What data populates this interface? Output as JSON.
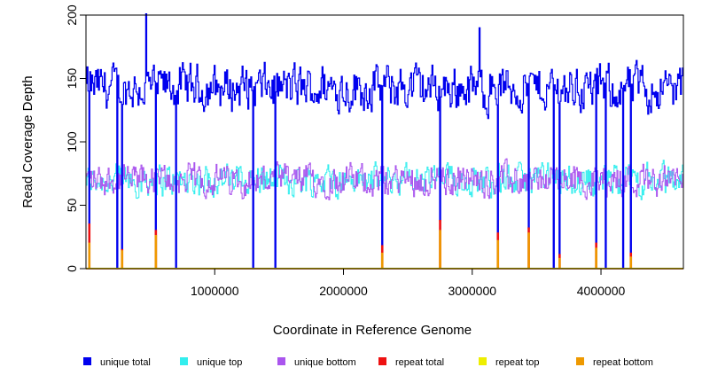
{
  "chart_data": {
    "type": "line",
    "title": "",
    "xlabel": "Coordinate in Reference Genome",
    "ylabel": "Read Coverage Depth",
    "xlim": [
      0,
      4640000
    ],
    "ylim": [
      0,
      200
    ],
    "x_ticks": [
      1000000,
      2000000,
      3000000,
      4000000
    ],
    "x_tick_labels": [
      "1000000",
      "2000000",
      "3000000",
      "4000000"
    ],
    "y_ticks": [
      0,
      50,
      100,
      150,
      200
    ],
    "y_tick_labels": [
      "0",
      "50",
      "100",
      "150",
      "200"
    ],
    "legend_position": "bottom",
    "legend": [
      {
        "name": "unique total",
        "color": "#0000ee"
      },
      {
        "name": "unique top",
        "color": "#33eeee"
      },
      {
        "name": "unique bottom",
        "color": "#aa55ee"
      },
      {
        "name": "repeat total",
        "color": "#ee1111"
      },
      {
        "name": "repeat top",
        "color": "#eeee00"
      },
      {
        "name": "repeat bottom",
        "color": "#ee9900"
      }
    ],
    "series_summary": {
      "unique_total_typical_range": [
        115,
        170
      ],
      "unique_top_typical_range": [
        50,
        90
      ],
      "unique_bottom_typical_range": [
        50,
        90
      ],
      "repeat_total_baseline": 0,
      "unique_total_max": 201
    },
    "peaks": [
      {
        "x": 470000,
        "unique_total": 201
      },
      {
        "x": 3060000,
        "unique_total": 190
      }
    ],
    "dropouts": [
      {
        "x": 25000,
        "repeat_total": 35,
        "repeat_bottom": 20
      },
      {
        "x": 245000,
        "repeat_total": 0,
        "repeat_bottom": 0
      },
      {
        "x": 280000,
        "repeat_total": 15,
        "repeat_bottom": 14
      },
      {
        "x": 545000,
        "repeat_total": 30,
        "repeat_bottom": 26
      },
      {
        "x": 700000,
        "repeat_total": 0,
        "repeat_bottom": 0
      },
      {
        "x": 1300000,
        "repeat_total": 0,
        "repeat_bottom": 0
      },
      {
        "x": 1470000,
        "repeat_total": 0,
        "repeat_bottom": 0
      },
      {
        "x": 2300000,
        "repeat_total": 18,
        "repeat_bottom": 12
      },
      {
        "x": 2750000,
        "repeat_total": 38,
        "repeat_bottom": 30
      },
      {
        "x": 3200000,
        "repeat_total": 28,
        "repeat_bottom": 22
      },
      {
        "x": 3440000,
        "repeat_total": 32,
        "repeat_bottom": 28
      },
      {
        "x": 3630000,
        "repeat_total": 0,
        "repeat_bottom": 0
      },
      {
        "x": 3680000,
        "repeat_total": 11,
        "repeat_bottom": 8
      },
      {
        "x": 3960000,
        "repeat_total": 20,
        "repeat_bottom": 16
      },
      {
        "x": 4040000,
        "repeat_total": 0,
        "repeat_bottom": 0
      },
      {
        "x": 4170000,
        "repeat_total": 0,
        "repeat_bottom": 0
      },
      {
        "x": 4230000,
        "repeat_total": 12,
        "repeat_bottom": 9
      }
    ]
  }
}
